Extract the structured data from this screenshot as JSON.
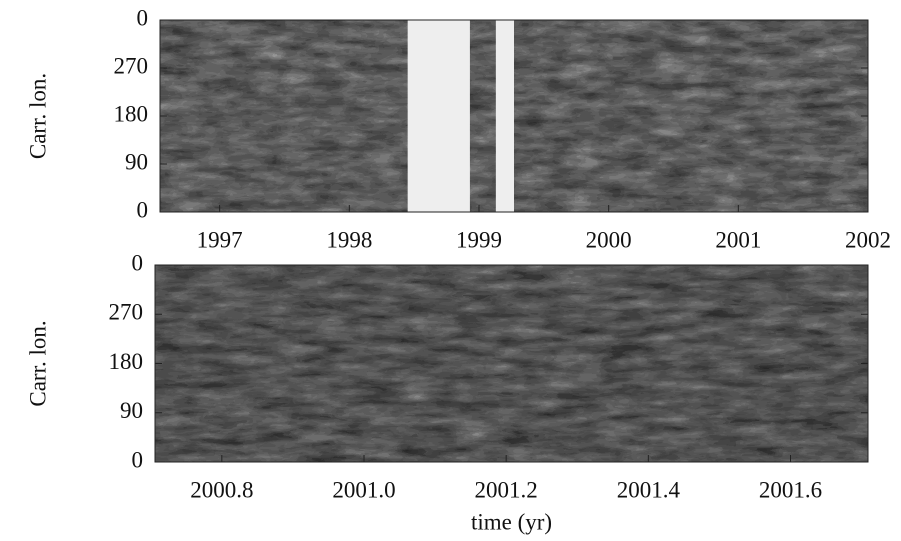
{
  "chart_data": [
    {
      "type": "heatmap",
      "ylabel": "Carr. lon.",
      "xlim": [
        1996.54,
        2002
      ],
      "xticks": [
        1997,
        1998,
        1999,
        2000,
        2001,
        2002
      ],
      "ylim": [
        0,
        360
      ],
      "yticks": [
        0,
        90,
        180,
        270,
        {
          "value": 360,
          "label": "0"
        }
      ],
      "gaps": [
        [
          1998.45,
          1998.93
        ],
        [
          1999.13,
          1999.27
        ]
      ],
      "colormap": "gray"
    },
    {
      "type": "heatmap",
      "ylabel": "Carr. lon.",
      "xlabel": "time (yr)",
      "xlim": [
        2000.706,
        2001.709
      ],
      "xticks": [
        2000.8,
        {
          "value": 2001.0,
          "label": "2001.0"
        },
        2001.2,
        2001.4,
        2001.6
      ],
      "ylim": [
        0,
        360
      ],
      "yticks": [
        0,
        90,
        180,
        270,
        {
          "value": 360,
          "label": "0"
        }
      ],
      "colormap": "gray"
    }
  ]
}
